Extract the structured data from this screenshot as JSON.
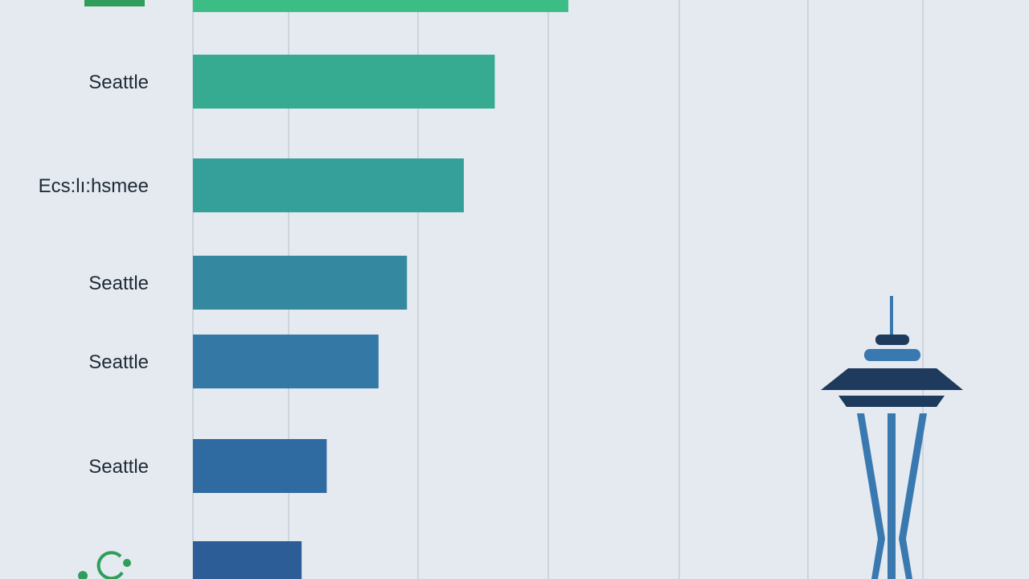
{
  "chart_data": {
    "type": "bar",
    "orientation": "horizontal",
    "categories": [
      null,
      "Seattle",
      "Ecs:lı:hsmee",
      "Seattle",
      "Seattle",
      "Seattle",
      null
    ],
    "values": [
      44.9,
      36.1,
      32.4,
      25.6,
      22.2,
      16.0,
      13.0
    ],
    "colors": [
      "#3dbd86",
      "#37aa92",
      "#35a09a",
      "#3489a0",
      "#3479a6",
      "#2f6aa0",
      "#2c5d97"
    ],
    "xlim": [
      0,
      100
    ]
  }
}
